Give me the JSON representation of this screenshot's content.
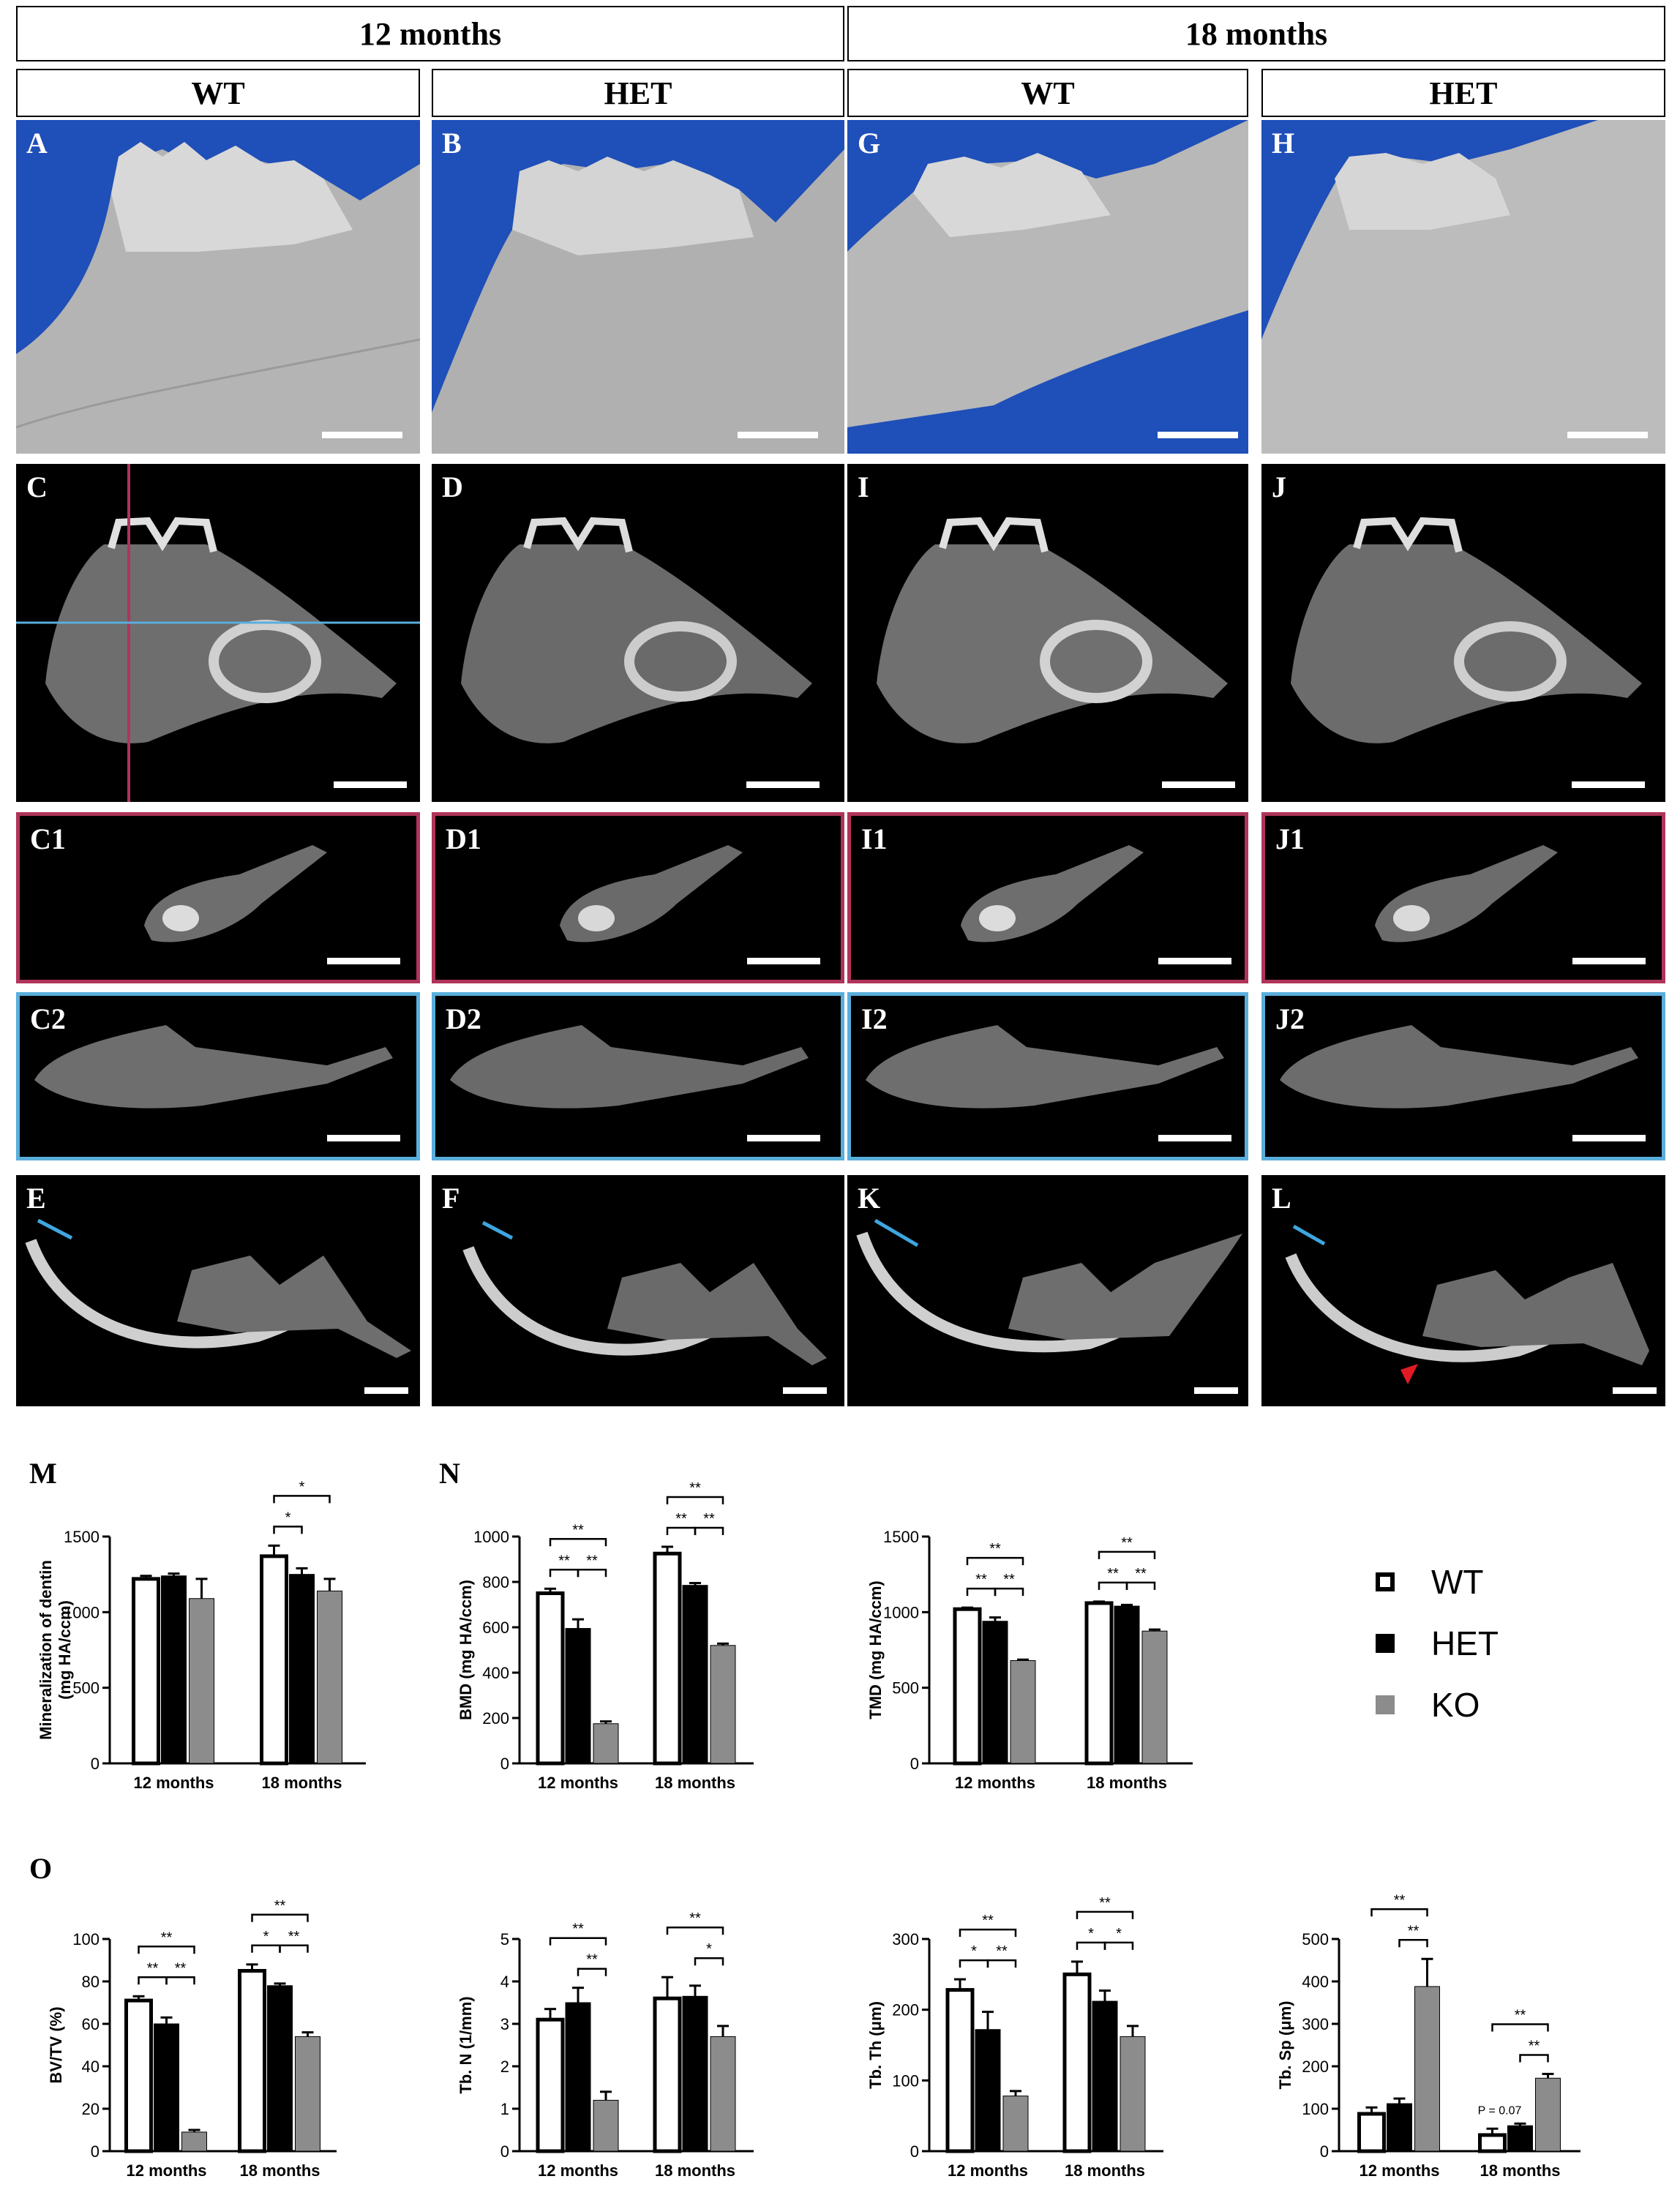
{
  "headers": {
    "group_12": "12 months",
    "group_18": "18 months",
    "col_wt_12": "WT",
    "col_het_12": "HET",
    "col_wt_18": "WT",
    "col_het_18": "HET"
  },
  "panel_labels": {
    "A": "A",
    "B": "B",
    "G": "G",
    "H": "H",
    "C": "C",
    "D": "D",
    "I": "I",
    "J": "J",
    "C1": "C1",
    "D1": "D1",
    "I1": "I1",
    "J1": "J1",
    "C2": "C2",
    "D2": "D2",
    "I2": "I2",
    "J2": "J2",
    "E": "E",
    "F": "F",
    "K": "K",
    "L": "L",
    "M": "M",
    "N": "N",
    "O": "O"
  },
  "colors": {
    "WT": "#ffffff",
    "HET": "#000000",
    "KO": "#8c8c8c",
    "render_bg": "#1f4fb8",
    "red_frame": "#b0345a",
    "blue_frame": "#5aaedc",
    "arrow": "#e01b24"
  },
  "legend": [
    {
      "name": "WT",
      "color": "#ffffff"
    },
    {
      "name": "HET",
      "color": "#000000"
    },
    {
      "name": "KO",
      "color": "#8c8c8c"
    }
  ],
  "chart_data": [
    {
      "id": "M",
      "type": "bar",
      "ylabel": "Mineralization of dentin\n(mg HA/ccm)",
      "ylim": [
        0,
        1500
      ],
      "yticks": [
        0,
        500,
        1000,
        1500
      ],
      "categories": [
        "12 months",
        "18 months"
      ],
      "series": [
        {
          "name": "WT",
          "values": [
            1220,
            1370
          ],
          "err": [
            20,
            70
          ]
        },
        {
          "name": "HET",
          "values": [
            1240,
            1250
          ],
          "err": [
            15,
            40
          ]
        },
        {
          "name": "KO",
          "values": [
            1090,
            1140
          ],
          "err": [
            130,
            80
          ]
        }
      ],
      "sig": [
        {
          "group": 1,
          "from": 0,
          "to": 2,
          "label": "*",
          "level": 1
        },
        {
          "group": 1,
          "from": 0,
          "to": 1,
          "label": "*",
          "level": 0
        }
      ]
    },
    {
      "id": "N1",
      "type": "bar",
      "ylabel": "BMD (mg HA/ccm)",
      "ylim": [
        0,
        1000
      ],
      "yticks": [
        0,
        200,
        400,
        600,
        800,
        1000
      ],
      "categories": [
        "12 months",
        "18 months"
      ],
      "series": [
        {
          "name": "WT",
          "values": [
            750,
            925
          ],
          "err": [
            20,
            30
          ]
        },
        {
          "name": "HET",
          "values": [
            595,
            785
          ],
          "err": [
            40,
            10
          ]
        },
        {
          "name": "KO",
          "values": [
            175,
            520
          ],
          "err": [
            10,
            8
          ]
        }
      ],
      "sig": [
        {
          "group": 0,
          "from": 0,
          "to": 2,
          "label": "**",
          "level": 1
        },
        {
          "group": 0,
          "from": 0,
          "to": 1,
          "label": "**",
          "level": 0
        },
        {
          "group": 0,
          "from": 1,
          "to": 2,
          "label": "**",
          "level": 0
        },
        {
          "group": 1,
          "from": 0,
          "to": 2,
          "label": "**",
          "level": 1
        },
        {
          "group": 1,
          "from": 0,
          "to": 1,
          "label": "**",
          "level": 0
        },
        {
          "group": 1,
          "from": 1,
          "to": 2,
          "label": "**",
          "level": 0
        }
      ]
    },
    {
      "id": "N2",
      "type": "bar",
      "ylabel": "TMD (mg HA/ccm)",
      "ylim": [
        0,
        1500
      ],
      "yticks": [
        0,
        500,
        1000,
        1500
      ],
      "categories": [
        "12 months",
        "18 months"
      ],
      "series": [
        {
          "name": "WT",
          "values": [
            1020,
            1060
          ],
          "err": [
            10,
            10
          ]
        },
        {
          "name": "HET",
          "values": [
            940,
            1040
          ],
          "err": [
            25,
            8
          ]
        },
        {
          "name": "KO",
          "values": [
            680,
            875
          ],
          "err": [
            6,
            10
          ]
        }
      ],
      "sig": [
        {
          "group": 0,
          "from": 0,
          "to": 2,
          "label": "**",
          "level": 1
        },
        {
          "group": 0,
          "from": 0,
          "to": 1,
          "label": "**",
          "level": 0
        },
        {
          "group": 0,
          "from": 1,
          "to": 2,
          "label": "**",
          "level": 0
        },
        {
          "group": 1,
          "from": 0,
          "to": 2,
          "label": "**",
          "level": 1
        },
        {
          "group": 1,
          "from": 0,
          "to": 1,
          "label": "**",
          "level": 0
        },
        {
          "group": 1,
          "from": 1,
          "to": 2,
          "label": "**",
          "level": 0
        }
      ]
    },
    {
      "id": "O1",
      "type": "bar",
      "ylabel": "BV/TV (%)",
      "ylim": [
        0,
        100
      ],
      "yticks": [
        0,
        20,
        40,
        60,
        80,
        100
      ],
      "categories": [
        "12 months",
        "18 months"
      ],
      "series": [
        {
          "name": "WT",
          "values": [
            71,
            85
          ],
          "err": [
            2,
            3
          ]
        },
        {
          "name": "HET",
          "values": [
            60,
            78
          ],
          "err": [
            3,
            1
          ]
        },
        {
          "name": "KO",
          "values": [
            9,
            54
          ],
          "err": [
            1,
            2
          ]
        }
      ],
      "sig": [
        {
          "group": 0,
          "from": 0,
          "to": 2,
          "label": "**",
          "level": 1
        },
        {
          "group": 0,
          "from": 0,
          "to": 1,
          "label": "**",
          "level": 0
        },
        {
          "group": 0,
          "from": 1,
          "to": 2,
          "label": "**",
          "level": 0
        },
        {
          "group": 1,
          "from": 0,
          "to": 2,
          "label": "**",
          "level": 1
        },
        {
          "group": 1,
          "from": 0,
          "to": 1,
          "label": "*",
          "level": 0
        },
        {
          "group": 1,
          "from": 1,
          "to": 2,
          "label": "**",
          "level": 0
        }
      ]
    },
    {
      "id": "O2",
      "type": "bar",
      "ylabel": "Tb. N (1/mm)",
      "ylim": [
        0,
        5
      ],
      "yticks": [
        0,
        1,
        2,
        3,
        4,
        5
      ],
      "categories": [
        "12 months",
        "18 months"
      ],
      "series": [
        {
          "name": "WT",
          "values": [
            3.1,
            3.6
          ],
          "err": [
            0.25,
            0.5
          ]
        },
        {
          "name": "HET",
          "values": [
            3.5,
            3.65
          ],
          "err": [
            0.35,
            0.25
          ]
        },
        {
          "name": "KO",
          "values": [
            1.2,
            2.7
          ],
          "err": [
            0.2,
            0.25
          ]
        }
      ],
      "sig": [
        {
          "group": 0,
          "from": 0,
          "to": 2,
          "label": "**",
          "level": 1
        },
        {
          "group": 0,
          "from": 1,
          "to": 2,
          "label": "**",
          "level": 0
        },
        {
          "group": 1,
          "from": 0,
          "to": 2,
          "label": "**",
          "level": 1
        },
        {
          "group": 1,
          "from": 1,
          "to": 2,
          "label": "*",
          "level": 0
        }
      ]
    },
    {
      "id": "O3",
      "type": "bar",
      "ylabel": "Tb. Th (μm)",
      "ylim": [
        0,
        300
      ],
      "yticks": [
        0,
        100,
        200,
        300
      ],
      "categories": [
        "12 months",
        "18 months"
      ],
      "series": [
        {
          "name": "WT",
          "values": [
            228,
            250
          ],
          "err": [
            15,
            18
          ]
        },
        {
          "name": "HET",
          "values": [
            172,
            212
          ],
          "err": [
            25,
            15
          ]
        },
        {
          "name": "KO",
          "values": [
            78,
            162
          ],
          "err": [
            7,
            15
          ]
        }
      ],
      "sig": [
        {
          "group": 0,
          "from": 0,
          "to": 2,
          "label": "**",
          "level": 1
        },
        {
          "group": 0,
          "from": 0,
          "to": 1,
          "label": "*",
          "level": 0
        },
        {
          "group": 0,
          "from": 1,
          "to": 2,
          "label": "**",
          "level": 0
        },
        {
          "group": 1,
          "from": 0,
          "to": 2,
          "label": "**",
          "level": 1
        },
        {
          "group": 1,
          "from": 0,
          "to": 1,
          "label": "*",
          "level": 0
        },
        {
          "group": 1,
          "from": 1,
          "to": 2,
          "label": "*",
          "level": 0
        }
      ]
    },
    {
      "id": "O4",
      "type": "bar",
      "ylabel": "Tb. Sp (μm)",
      "ylim": [
        0,
        500
      ],
      "yticks": [
        0,
        100,
        200,
        300,
        400,
        500
      ],
      "categories": [
        "12 months",
        "18 months"
      ],
      "series": [
        {
          "name": "WT",
          "values": [
            88,
            38
          ],
          "err": [
            15,
            15
          ]
        },
        {
          "name": "HET",
          "values": [
            112,
            60
          ],
          "err": [
            12,
            5
          ]
        },
        {
          "name": "KO",
          "values": [
            388,
            172
          ],
          "err": [
            65,
            10
          ]
        }
      ],
      "sig": [
        {
          "group": 0,
          "from": 0,
          "to": 2,
          "label": "**",
          "level": 1
        },
        {
          "group": 0,
          "from": 1,
          "to": 2,
          "label": "**",
          "level": 0
        },
        {
          "group": 1,
          "from": 0,
          "to": 2,
          "label": "**",
          "level": 1
        },
        {
          "group": 1,
          "from": 1,
          "to": 2,
          "label": "**",
          "level": 0
        }
      ],
      "annotation": "P = 0.07"
    }
  ]
}
